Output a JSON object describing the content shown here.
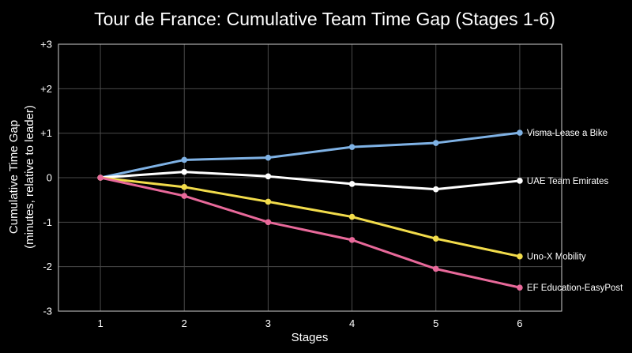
{
  "chart_data": {
    "type": "line",
    "title": "Tour de France: Cumulative Team Time Gap (Stages 1-6)",
    "xlabel": "Stages",
    "ylabel_line1": "Cumulative Time Gap",
    "ylabel_line2": "(minutes, relative to leader)",
    "x": [
      1,
      2,
      3,
      4,
      5,
      6
    ],
    "x_tick_labels": [
      "1",
      "2",
      "3",
      "4",
      "5",
      "6"
    ],
    "xlim": [
      0.5,
      6.5
    ],
    "ylim": [
      -3,
      3
    ],
    "y_ticks": [
      -3,
      -2,
      -1,
      0,
      1,
      2,
      3
    ],
    "y_tick_labels": [
      "-3",
      "-2",
      "-1",
      "0",
      "+1",
      "+2",
      "+3"
    ],
    "grid": true,
    "legend": "labels at line ends (right)",
    "series": [
      {
        "name": "Visma-Lease a Bike",
        "color": "#7fb2e5",
        "values": [
          0,
          0.4,
          0.45,
          0.69,
          0.78,
          1.01
        ]
      },
      {
        "name": "UAE Team Emirates",
        "color": "#ffffff",
        "values": [
          0,
          0.13,
          0.03,
          -0.14,
          -0.26,
          -0.07
        ]
      },
      {
        "name": "Uno-X Mobility",
        "color": "#f2dc4b",
        "values": [
          0,
          -0.21,
          -0.54,
          -0.88,
          -1.37,
          -1.77
        ]
      },
      {
        "name": "EF Education-EasyPost",
        "color": "#e8699a",
        "values": [
          0,
          -0.41,
          -1.0,
          -1.4,
          -2.05,
          -2.47
        ]
      }
    ]
  }
}
